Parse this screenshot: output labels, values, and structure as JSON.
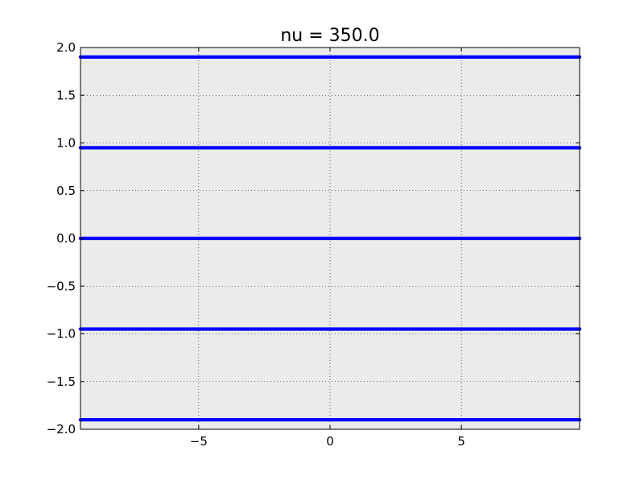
{
  "chart_data": {
    "type": "scatter",
    "title": "nu = 350.0",
    "xlabel": "",
    "ylabel": "",
    "xlim": [
      -9.5,
      9.5
    ],
    "ylim": [
      -2.0,
      2.0
    ],
    "x_ticks": [
      -5,
      0,
      5
    ],
    "x_tick_labels": [
      "−5",
      "0",
      "5"
    ],
    "y_ticks": [
      -2.0,
      -1.5,
      -1.0,
      -0.5,
      0.0,
      0.5,
      1.0,
      1.5,
      2.0
    ],
    "y_tick_labels": [
      "−2.0",
      "−1.5",
      "−1.0",
      "−0.5",
      "0.0",
      "0.5",
      "1.0",
      "1.5",
      "2.0"
    ],
    "grid": true,
    "grid_style": "dotted",
    "background_color": "#ebebeb",
    "series": [
      {
        "color": "#0000ff",
        "marker": "dot",
        "x_range": [
          -9.5,
          9.5
        ],
        "y_levels": [
          -1.9,
          -0.95,
          0.0,
          0.95,
          1.9
        ]
      }
    ]
  }
}
